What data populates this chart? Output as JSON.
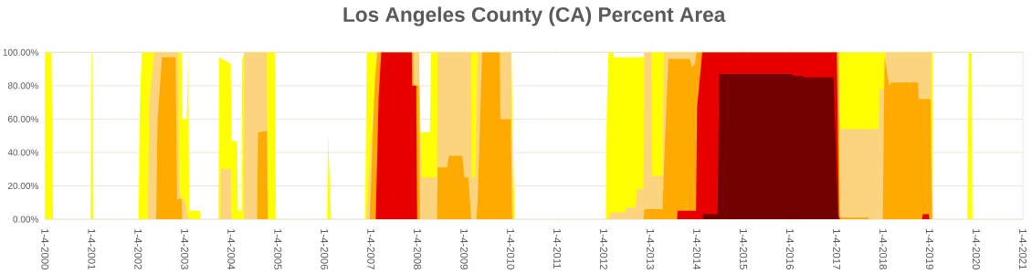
{
  "chart_data": {
    "type": "area",
    "title": "Los Angeles County (CA) Percent Area",
    "xlim": [
      "2000-01-04",
      "2021-01-04"
    ],
    "xticks": [
      {
        "value": "2000-01-04",
        "label": "1-4-2000"
      },
      {
        "value": "2001-01-04",
        "label": "1-4-2001"
      },
      {
        "value": "2002-01-04",
        "label": "1-4-2002"
      },
      {
        "value": "2003-01-04",
        "label": "1-4-2003"
      },
      {
        "value": "2004-01-04",
        "label": "1-4-2004"
      },
      {
        "value": "2005-01-04",
        "label": "1-4-2005"
      },
      {
        "value": "2006-01-04",
        "label": "1-4-2006"
      },
      {
        "value": "2007-01-04",
        "label": "1-4-2007"
      },
      {
        "value": "2008-01-04",
        "label": "1-4-2008"
      },
      {
        "value": "2009-01-04",
        "label": "1-4-2009"
      },
      {
        "value": "2010-01-04",
        "label": "1-4-2010"
      },
      {
        "value": "2011-01-04",
        "label": "1-4-2011"
      },
      {
        "value": "2012-01-04",
        "label": "1-4-2012"
      },
      {
        "value": "2013-01-04",
        "label": "1-4-2013"
      },
      {
        "value": "2014-01-04",
        "label": "1-4-2014"
      },
      {
        "value": "2015-01-04",
        "label": "1-4-2015"
      },
      {
        "value": "2016-01-04",
        "label": "1-4-2016"
      },
      {
        "value": "2017-01-04",
        "label": "1-4-2017"
      },
      {
        "value": "2018-01-04",
        "label": "1-4-2018"
      },
      {
        "value": "2019-01-04",
        "label": "1-4-2019"
      },
      {
        "value": "2020-01-04",
        "label": "1-4-2020"
      },
      {
        "value": "2021-01-04",
        "label": "1-4-2021"
      }
    ],
    "ylim": [
      0,
      100
    ],
    "yticks": [
      {
        "value": 0,
        "label": "0.00%"
      },
      {
        "value": 20,
        "label": "20.00%"
      },
      {
        "value": 40,
        "label": "40.00%"
      },
      {
        "value": 60,
        "label": "60.00%"
      },
      {
        "value": 80,
        "label": "80.00%"
      },
      {
        "value": 100,
        "label": "100.00%"
      }
    ],
    "grid": "y",
    "series": [
      {
        "color": "#ffff00",
        "x": [
          "2000-01-04",
          "2000-02-24",
          "2000-03-07",
          "2000-12-26",
          "2001-01-04",
          "2001-01-11",
          "2001-01-18",
          "2002-01-08",
          "2002-01-15",
          "2002-02-01",
          "2002-12-10",
          "2002-12-17",
          "2003-01-20",
          "2003-02-01",
          "2003-02-08",
          "2003-05-01",
          "2003-05-10",
          "2003-09-25",
          "2003-10-01",
          "2003-12-31",
          "2004-01-05",
          "2004-02-20",
          "2004-02-25",
          "2004-03-25",
          "2004-03-28",
          "2004-04-15",
          "2004-12-10",
          "2004-12-20",
          "2006-01-25",
          "2006-02-01",
          "2006-02-25",
          "2006-11-20",
          "2006-12-01",
          "2008-01-15",
          "2008-01-25",
          "2008-04-10",
          "2008-04-20",
          "2010-01-10",
          "2010-01-20",
          "2010-02-05",
          "2012-01-20",
          "2012-01-28",
          "2012-02-10",
          "2012-03-20",
          "2012-03-22",
          "2012-11-10",
          "2012-11-15",
          "2019-01-25",
          "2019-02-01",
          "2019-10-25",
          "2019-11-05",
          "2019-11-30",
          "2019-12-05"
        ],
        "values": [
          100,
          100,
          0,
          0,
          100,
          100,
          0,
          0,
          66,
          100,
          100,
          60,
          60,
          100,
          5,
          5,
          0,
          0,
          97,
          93,
          47,
          47,
          5,
          5,
          95,
          100,
          100,
          0,
          0,
          52,
          0,
          0,
          100,
          100,
          52,
          52,
          100,
          100,
          52,
          0,
          0,
          66,
          100,
          100,
          97,
          97,
          100,
          100,
          0,
          0,
          100,
          100,
          0
        ]
      },
      {
        "color": "#fcd37f",
        "x": [
          "2002-03-20",
          "2002-04-01",
          "2002-05-10",
          "2002-11-10",
          "2002-11-25",
          "2003-01-10",
          "2003-02-05",
          "2003-10-10",
          "2003-10-15",
          "2004-01-01",
          "2004-01-05",
          "2004-04-10",
          "2004-04-15",
          "2004-10-10",
          "2004-10-15",
          "2006-12-01",
          "2007-02-05",
          "2007-02-15",
          "2008-01-15",
          "2008-02-05",
          "2008-06-05",
          "2008-06-10",
          "2009-03-01",
          "2009-03-05",
          "2009-04-01",
          "2009-04-20",
          "2010-01-05",
          "2010-01-25",
          "2012-02-05",
          "2012-03-01",
          "2012-06-15",
          "2012-07-01",
          "2012-09-10",
          "2012-09-20",
          "2012-11-10",
          "2012-11-20",
          "2013-01-10",
          "2013-01-18",
          "2013-04-10",
          "2013-04-20",
          "2017-01-20",
          "2017-01-28",
          "2017-12-01",
          "2017-12-05",
          "2018-01-15",
          "2018-01-20",
          "2019-01-15",
          "2019-01-25"
        ],
        "values": [
          0,
          70,
          100,
          100,
          15,
          10,
          0,
          0,
          30,
          30,
          0,
          0,
          100,
          100,
          0,
          0,
          85,
          100,
          100,
          25,
          25,
          100,
          100,
          25,
          25,
          100,
          100,
          0,
          0,
          4,
          4,
          7,
          7,
          18,
          18,
          100,
          100,
          26,
          26,
          100,
          100,
          54,
          54,
          78,
          78,
          100,
          100,
          0
        ]
      },
      {
        "color": "#ffaa00",
        "x": [
          "2002-05-25",
          "2002-06-05",
          "2002-07-10",
          "2002-10-25",
          "2002-11-05",
          "2002-12-10",
          "2002-12-15",
          "2004-07-25",
          "2004-08-01",
          "2004-10-10",
          "2004-10-15",
          "2006-12-25",
          "2007-02-05",
          "2007-02-25",
          "2007-12-01",
          "2007-12-05",
          "2008-01-15",
          "2008-01-25",
          "2008-06-05",
          "2008-06-10",
          "2008-08-25",
          "2008-09-05",
          "2008-12-20",
          "2009-01-05",
          "2009-02-05",
          "2009-03-01",
          "2009-04-10",
          "2009-04-20",
          "2009-05-25",
          "2009-10-10",
          "2009-10-15",
          "2010-01-05",
          "2010-01-15",
          "2012-11-10",
          "2012-11-20",
          "2013-04-10",
          "2013-04-20",
          "2013-05-25",
          "2013-11-10",
          "2013-11-25",
          "2013-12-20",
          "2014-01-01",
          "2017-01-20",
          "2017-01-28",
          "2017-09-10",
          "2017-09-15",
          "2018-01-01",
          "2018-01-15",
          "2018-02-20",
          "2018-03-10",
          "2018-10-05",
          "2018-10-10",
          "2019-01-10",
          "2019-01-22"
        ],
        "values": [
          0,
          60,
          97,
          97,
          12,
          12,
          0,
          0,
          52,
          53,
          0,
          0,
          85,
          100,
          100,
          80,
          80,
          0,
          0,
          31,
          31,
          38,
          38,
          25,
          25,
          0,
          0,
          11,
          100,
          100,
          60,
          60,
          0,
          0,
          6,
          6,
          30,
          96,
          96,
          91,
          93,
          100,
          100,
          1,
          1,
          0,
          0,
          97,
          80,
          82,
          82,
          72,
          72,
          0
        ]
      },
      {
        "color": "#e60000",
        "x": [
          "2007-02-10",
          "2007-03-05",
          "2007-03-25",
          "2007-11-20",
          "2007-11-22",
          "2007-12-25",
          "2008-01-01",
          "2013-08-01",
          "2013-08-05",
          "2013-12-28",
          "2014-01-05",
          "2014-02-15",
          "2017-01-05",
          "2017-01-22",
          "2017-02-01",
          "2018-11-05",
          "2018-11-12",
          "2018-12-28",
          "2019-01-02"
        ],
        "values": [
          0,
          73,
          100,
          100,
          80,
          80,
          0,
          0,
          5,
          5,
          67,
          100,
          100,
          2,
          0,
          0,
          3,
          3,
          0
        ]
      },
      {
        "color": "#730000",
        "x": [
          "2014-02-15",
          "2014-02-20",
          "2014-06-15",
          "2014-06-28",
          "2016-01-20",
          "2016-01-25",
          "2016-04-15",
          "2016-04-20",
          "2016-12-10",
          "2017-01-15"
        ],
        "values": [
          0,
          3,
          3,
          87,
          87,
          86,
          86,
          85,
          85,
          0
        ]
      }
    ]
  }
}
